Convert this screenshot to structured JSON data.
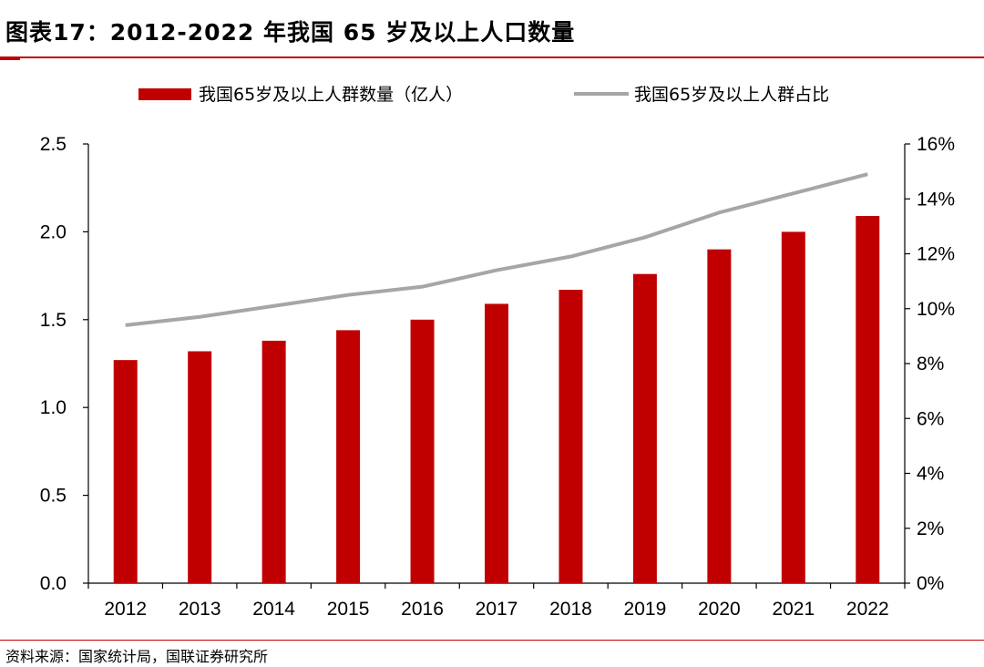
{
  "header": {
    "title": "图表17：2012-2022 年我国 65 岁及以上人口数量"
  },
  "source": {
    "text": "资料来源：国家统计局，国联证券研究所"
  },
  "chart_data": {
    "type": "bar+line",
    "categories": [
      "2012",
      "2013",
      "2014",
      "2015",
      "2016",
      "2017",
      "2018",
      "2019",
      "2020",
      "2021",
      "2022"
    ],
    "series": [
      {
        "name": "我国65岁及以上人群数量（亿人）",
        "type": "bar",
        "axis": "left",
        "color": "#c00000",
        "values": [
          1.27,
          1.32,
          1.38,
          1.44,
          1.5,
          1.59,
          1.67,
          1.76,
          1.9,
          2.0,
          2.09
        ]
      },
      {
        "name": "我国65岁及以上人群占比",
        "type": "line",
        "axis": "right",
        "color": "#a6a6a6",
        "values": [
          9.4,
          9.7,
          10.1,
          10.5,
          10.8,
          11.4,
          11.9,
          12.6,
          13.5,
          14.2,
          14.9
        ]
      }
    ],
    "left_axis": {
      "min": 0,
      "max": 2.5,
      "ticks": [
        "0.0",
        "0.5",
        "1.0",
        "1.5",
        "2.0",
        "2.5"
      ]
    },
    "right_axis": {
      "min": 0,
      "max": 16,
      "ticks": [
        "0%",
        "2%",
        "4%",
        "6%",
        "8%",
        "10%",
        "12%",
        "14%",
        "16%"
      ]
    },
    "legend_position": "top"
  }
}
